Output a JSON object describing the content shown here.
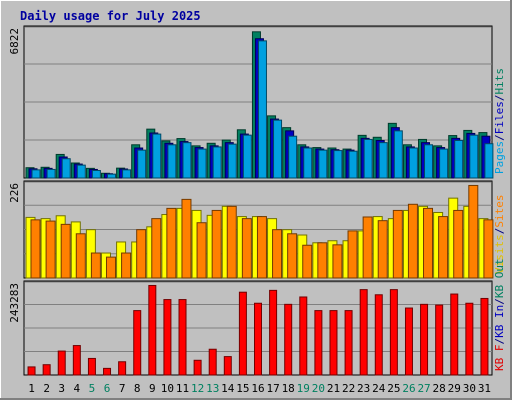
{
  "chart_data": [
    {
      "type": "bar",
      "title": "Daily usage for July 2025",
      "categories": [
        "1",
        "2",
        "3",
        "4",
        "5",
        "6",
        "7",
        "8",
        "9",
        "10",
        "11",
        "12",
        "13",
        "14",
        "15",
        "16",
        "17",
        "18",
        "19",
        "20",
        "21",
        "22",
        "23",
        "24",
        "25",
        "26",
        "27",
        "28",
        "29",
        "30",
        "31"
      ],
      "weekend_days": [
        "5",
        "6",
        "12",
        "13",
        "19",
        "20",
        "26",
        "27"
      ],
      "y_tick_label": "6822",
      "ylim": [
        0,
        7000
      ],
      "axis_legend": [
        {
          "text": "Pages",
          "color": "#00a0e0"
        },
        {
          "text": "/",
          "color": "#000080"
        },
        {
          "text": "Files",
          "color": "#0000c0"
        },
        {
          "text": "/",
          "color": "#000080"
        },
        {
          "text": "Hits",
          "color": "#008060"
        }
      ],
      "series": [
        {
          "name": "Hits",
          "color": "#008060",
          "values": [
            480,
            500,
            1100,
            700,
            450,
            220,
            460,
            1550,
            2280,
            1730,
            1840,
            1500,
            1620,
            1770,
            2250,
            6822,
            2900,
            2350,
            1550,
            1420,
            1400,
            1350,
            1990,
            1900,
            2550,
            1550,
            1800,
            1500,
            1980,
            2220,
            2120
          ]
        },
        {
          "name": "Files",
          "color": "#0000c0",
          "values": [
            430,
            450,
            980,
            650,
            400,
            200,
            420,
            1400,
            2100,
            1620,
            1700,
            1420,
            1500,
            1650,
            2050,
            6500,
            2750,
            2200,
            1450,
            1350,
            1320,
            1300,
            1850,
            1750,
            2350,
            1450,
            1650,
            1420,
            1850,
            2080,
            1950
          ]
        },
        {
          "name": "Pages",
          "color": "#00a0e0",
          "values": [
            380,
            400,
            900,
            600,
            350,
            180,
            380,
            1300,
            2050,
            1550,
            1650,
            1350,
            1450,
            1580,
            2000,
            6400,
            2700,
            1950,
            1400,
            1300,
            1280,
            1250,
            1800,
            1650,
            2200,
            1400,
            1550,
            1350,
            1750,
            2000,
            1600
          ]
        }
      ]
    },
    {
      "type": "bar",
      "y_tick_label": "226",
      "ylim": [
        0,
        232
      ],
      "axis_legend": [
        {
          "text": "Visits",
          "color": "#e0c000"
        },
        {
          "text": "/",
          "color": "#000080"
        },
        {
          "text": "Sites",
          "color": "#ff8000"
        }
      ],
      "series": [
        {
          "name": "Visits",
          "color": "#ffff00",
          "values": [
            148,
            145,
            152,
            137,
            118,
            61,
            88,
            88,
            125,
            155,
            170,
            165,
            153,
            175,
            150,
            150,
            145,
            118,
            105,
            86,
            91,
            91,
            115,
            150,
            145,
            165,
            175,
            160,
            195,
            175,
            145
          ]
        },
        {
          "name": "Sites",
          "color": "#ff8000",
          "values": [
            142,
            139,
            131,
            108,
            61,
            51,
            61,
            118,
            145,
            170,
            192,
            135,
            165,
            175,
            145,
            150,
            118,
            108,
            80,
            86,
            81,
            115,
            149,
            140,
            165,
            180,
            170,
            150,
            165,
            226,
            142
          ]
        }
      ]
    },
    {
      "type": "bar",
      "y_tick_label": "243283",
      "ylim": [
        0,
        250000
      ],
      "axis_legend": [
        {
          "text": "KB F",
          "color": "#e00000"
        },
        {
          "text": "/",
          "color": "#000080"
        },
        {
          "text": "KB In",
          "color": "#0000c0"
        },
        {
          "text": "/",
          "color": "#000080"
        },
        {
          "text": "KB Out",
          "color": "#008060"
        }
      ],
      "series": [
        {
          "name": "KB F",
          "color": "#ff0000",
          "values": [
            22000,
            28000,
            65000,
            80000,
            45000,
            18000,
            36000,
            175000,
            243283,
            205000,
            205000,
            40000,
            70000,
            50000,
            225000,
            195000,
            230000,
            192000,
            212000,
            175000,
            175000,
            175000,
            232000,
            218000,
            232000,
            182000,
            192000,
            190000,
            220000,
            195000,
            208000
          ]
        }
      ]
    }
  ]
}
